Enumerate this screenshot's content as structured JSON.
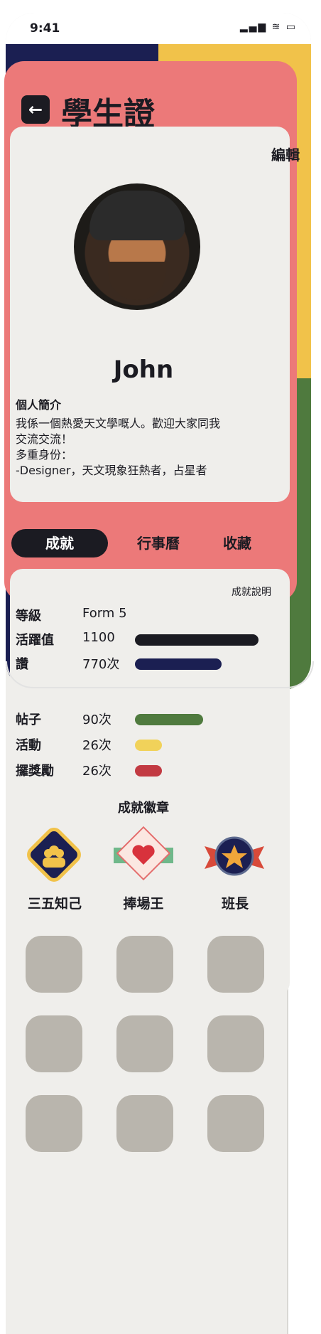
{
  "status": {
    "time": "9:41",
    "icons": "▂▄▆ ≋ ▭"
  },
  "header": {
    "back_icon": "←",
    "title": "學生證"
  },
  "profile": {
    "edit_label": "編輯",
    "name": "John",
    "bio_title": "個人簡介",
    "bio_lines": [
      "我係一個熱愛天文學嘅人。歡迎大家同我",
      "交流交流！",
      "多重身份：",
      "-Designer，天文現象狂熱者，占星者"
    ]
  },
  "tabs": [
    {
      "label": "成就",
      "active": true
    },
    {
      "label": "行事曆",
      "active": false
    },
    {
      "label": "收藏",
      "active": false
    }
  ],
  "achievements": {
    "help_label": "成就說明",
    "stats": [
      {
        "label": "等級",
        "value": "Form 5",
        "bar": null,
        "color": null
      },
      {
        "label": "活躍值",
        "value": "1100",
        "bar": 1.0,
        "color": "#1b1b22"
      },
      {
        "label": "讚",
        "value": "770次",
        "bar": 0.7,
        "color": "#1b1f52"
      },
      {
        "label": "帖子",
        "value": "90次",
        "bar": 0.55,
        "color": "#4f7a3e"
      },
      {
        "label": "活動",
        "value": "26次",
        "bar": 0.22,
        "color": "#f1d25a"
      },
      {
        "label": "攞獎勵",
        "value": "26次",
        "bar": 0.22,
        "color": "#c23a42"
      }
    ],
    "badges_title": "成就徽章",
    "badges": [
      {
        "label": "三五知己",
        "icon": "friends-badge-icon"
      },
      {
        "label": "捧場王",
        "icon": "heart-badge-icon"
      },
      {
        "label": "班長",
        "icon": "star-badge-icon"
      }
    ]
  }
}
